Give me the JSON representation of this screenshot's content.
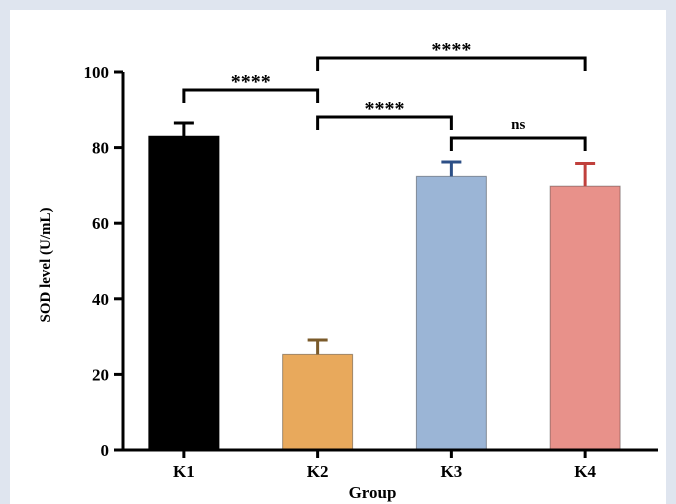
{
  "chart_data": {
    "type": "bar",
    "categories": [
      "K1",
      "K2",
      "K3",
      "K4"
    ],
    "values": [
      83,
      25.3,
      72.4,
      69.8
    ],
    "errors": [
      3.5,
      3.8,
      3.8,
      6.0
    ],
    "colors": [
      "#000000",
      "#e8a95c",
      "#9bb5d6",
      "#e8918a"
    ],
    "error_colors": [
      "#000000",
      "#7a5a2a",
      "#2c4f86",
      "#c0403c"
    ],
    "xlabel": "Group",
    "ylabel": "SOD level (U/mL)",
    "ylim": [
      0,
      100
    ],
    "yticks": [
      0,
      20,
      40,
      60,
      80,
      100
    ],
    "comparisons": [
      {
        "from": "K1",
        "to": "K2",
        "label": "****"
      },
      {
        "from": "K2",
        "to": "K4",
        "label": "****"
      },
      {
        "from": "K2",
        "to": "K3",
        "label": "****"
      },
      {
        "from": "K3",
        "to": "K4",
        "label": "ns"
      }
    ],
    "grid": false,
    "legend": "none"
  }
}
